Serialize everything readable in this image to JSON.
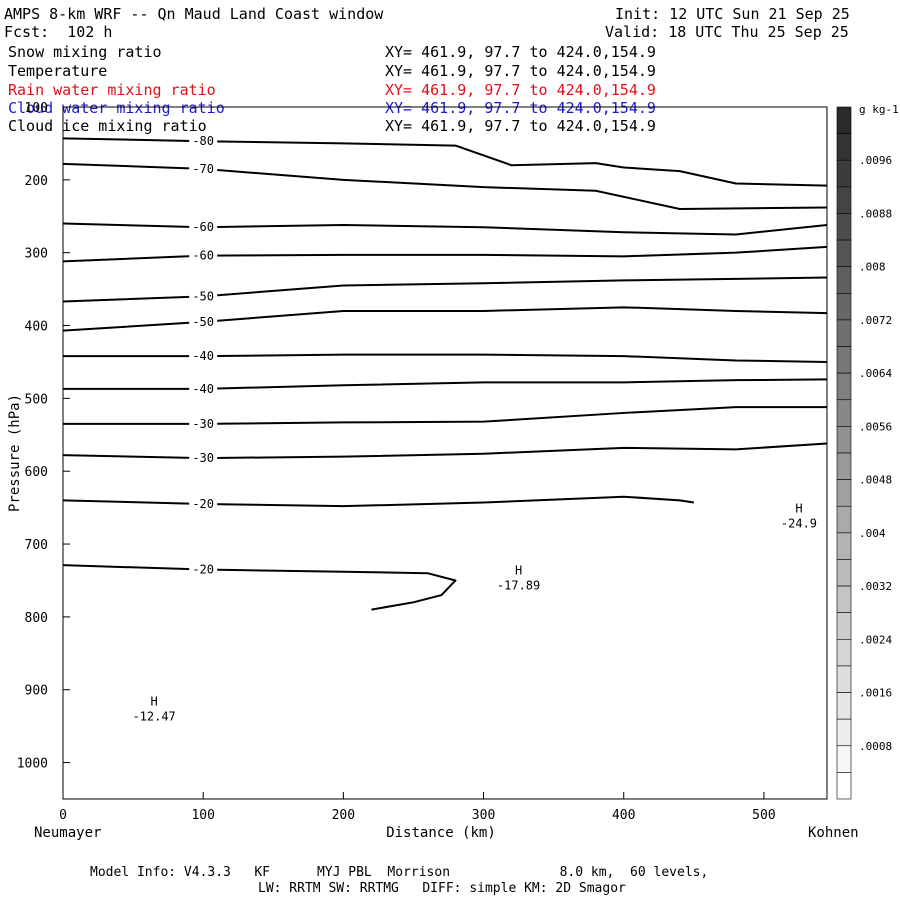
{
  "header": {
    "title": "AMPS 8-km WRF -- Qn Maud Land Coast window",
    "init": "Init: 12 UTC Sun 21 Sep 25",
    "fcst": "Fcst:  102 h",
    "valid": "Valid: 18 UTC Thu 25 Sep 25"
  },
  "fields": [
    {
      "name": "Snow mixing ratio",
      "xy": "XY= 461.9, 97.7 to 424.0,154.9",
      "color": "#000000"
    },
    {
      "name": "Temperature",
      "xy": "XY= 461.9, 97.7 to 424.0,154.9",
      "color": "#000000"
    },
    {
      "name": "Rain water mixing ratio",
      "xy": "XY= 461.9, 97.7 to 424.0,154.9",
      "color": "#e0101a"
    },
    {
      "name": "Cloud water mixing ratio",
      "xy": "XY= 461.9, 97.7 to 424.0,154.9",
      "color": "#1a1ad0"
    },
    {
      "name": "Cloud ice mixing ratio",
      "xy": "XY= 461.9, 97.7 to 424.0,154.9",
      "color": "#000000"
    }
  ],
  "chart_data": {
    "type": "cross-section contour",
    "xlabel": "Distance (km)",
    "ylabel": "Pressure (hPa)",
    "xlim": [
      0,
      545
    ],
    "ylim": [
      1050,
      100
    ],
    "xticks": [
      0,
      100,
      200,
      300,
      400,
      500
    ],
    "yticks": [
      100,
      200,
      300,
      400,
      500,
      600,
      700,
      800,
      900,
      1000
    ],
    "left_endpoint": "Neumayer",
    "right_endpoint": "Kohnen",
    "temperature_contours_C": [
      {
        "level": -80,
        "points": [
          [
            0,
            143
          ],
          [
            100,
            147
          ],
          [
            200,
            150
          ],
          [
            280,
            153
          ],
          [
            320,
            180
          ],
          [
            380,
            177
          ],
          [
            400,
            183
          ],
          [
            440,
            188
          ],
          [
            480,
            205
          ],
          [
            545,
            208
          ]
        ]
      },
      {
        "level": -70,
        "points": [
          [
            0,
            178
          ],
          [
            100,
            185
          ],
          [
            200,
            200
          ],
          [
            300,
            210
          ],
          [
            380,
            215
          ],
          [
            440,
            240
          ],
          [
            545,
            238
          ]
        ]
      },
      {
        "level": -60,
        "points": [
          [
            0,
            260
          ],
          [
            100,
            265
          ],
          [
            200,
            262
          ],
          [
            300,
            265
          ],
          [
            400,
            272
          ],
          [
            480,
            275
          ],
          [
            545,
            262
          ]
        ]
      },
      {
        "level": -60,
        "points": [
          [
            0,
            312
          ],
          [
            100,
            304
          ],
          [
            200,
            303
          ],
          [
            300,
            303
          ],
          [
            400,
            305
          ],
          [
            480,
            300
          ],
          [
            545,
            292
          ]
        ]
      },
      {
        "level": -50,
        "points": [
          [
            0,
            367
          ],
          [
            100,
            360
          ],
          [
            200,
            345
          ],
          [
            300,
            342
          ],
          [
            400,
            338
          ],
          [
            480,
            336
          ],
          [
            545,
            334
          ]
        ]
      },
      {
        "level": -50,
        "points": [
          [
            0,
            407
          ],
          [
            100,
            395
          ],
          [
            200,
            380
          ],
          [
            300,
            380
          ],
          [
            400,
            375
          ],
          [
            480,
            380
          ],
          [
            545,
            383
          ]
        ]
      },
      {
        "level": -40,
        "points": [
          [
            0,
            442
          ],
          [
            100,
            442
          ],
          [
            200,
            440
          ],
          [
            300,
            440
          ],
          [
            400,
            442
          ],
          [
            480,
            448
          ],
          [
            545,
            450
          ]
        ]
      },
      {
        "level": -40,
        "points": [
          [
            0,
            487
          ],
          [
            100,
            487
          ],
          [
            200,
            482
          ],
          [
            300,
            478
          ],
          [
            400,
            478
          ],
          [
            480,
            475
          ],
          [
            545,
            474
          ]
        ]
      },
      {
        "level": -30,
        "points": [
          [
            0,
            535
          ],
          [
            100,
            535
          ],
          [
            200,
            533
          ],
          [
            300,
            532
          ],
          [
            400,
            520
          ],
          [
            480,
            512
          ],
          [
            545,
            512
          ]
        ]
      },
      {
        "level": -30,
        "points": [
          [
            0,
            578
          ],
          [
            100,
            582
          ],
          [
            200,
            580
          ],
          [
            300,
            576
          ],
          [
            400,
            568
          ],
          [
            480,
            570
          ],
          [
            545,
            562
          ]
        ]
      },
      {
        "level": -20,
        "points": [
          [
            0,
            640
          ],
          [
            100,
            645
          ],
          [
            200,
            648
          ],
          [
            300,
            643
          ],
          [
            400,
            635
          ],
          [
            440,
            640
          ],
          [
            450,
            643
          ]
        ]
      },
      {
        "level": -20,
        "points": [
          [
            0,
            729
          ],
          [
            100,
            735
          ],
          [
            200,
            738
          ],
          [
            260,
            740
          ],
          [
            280,
            750
          ],
          [
            270,
            770
          ],
          [
            250,
            780
          ],
          [
            220,
            790
          ]
        ]
      }
    ],
    "extrema": [
      {
        "type": "H",
        "x": 65,
        "p": 930,
        "value": "-12.47"
      },
      {
        "type": "H",
        "x": 325,
        "p": 750,
        "value": "-17.89"
      },
      {
        "type": "H",
        "x": 525,
        "p": 665,
        "value": "-24.9"
      }
    ],
    "colorbar": {
      "unit": "g kg-1",
      "ticks": [
        ".0008",
        ".0016",
        ".0024",
        ".0032",
        ".004",
        ".0048",
        ".0056",
        ".0064",
        ".0072",
        ".008",
        ".0088",
        ".0096"
      ]
    }
  },
  "footer": {
    "line1": "Model Info: V4.3.3   KF      MYJ PBL  Morrison              8.0 km,  60 levels,",
    "line2": "LW: RRTM SW: RRTMG   DIFF: simple KM: 2D Smagor"
  }
}
